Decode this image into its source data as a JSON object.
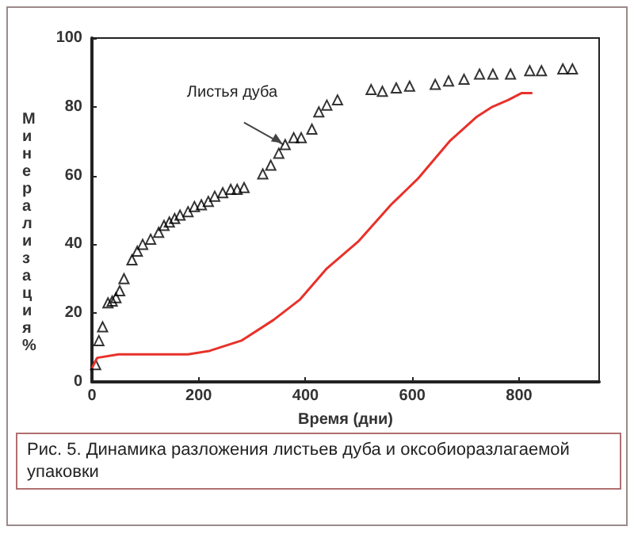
{
  "chart_data": {
    "type": "scatter",
    "xlabel": "Время (дни)",
    "ylabel": "Минерализация %",
    "xlim": [
      0,
      950
    ],
    "xticks": [
      0,
      200,
      400,
      600,
      800
    ],
    "ylim": [
      0,
      100
    ],
    "yticks": [
      0,
      20,
      40,
      60,
      80,
      100
    ],
    "grid": false,
    "series": [
      {
        "marker": "triangle",
        "color": "#000000",
        "x": [
          7,
          13,
          20,
          30,
          38,
          45,
          52,
          60,
          75,
          85,
          95,
          110,
          125,
          135,
          145,
          155,
          165,
          180,
          192,
          205,
          218,
          230,
          245,
          260,
          272,
          285,
          320,
          335,
          350,
          362,
          378,
          392,
          412,
          425,
          440,
          460,
          523,
          544,
          570,
          595,
          643,
          668,
          697,
          726,
          751,
          784,
          820,
          842,
          882,
          900
        ],
        "values": [
          5,
          12,
          16,
          23,
          23.5,
          24.5,
          26.5,
          30,
          35.5,
          38,
          40,
          41.5,
          43.5,
          45.5,
          46.5,
          47.5,
          48.5,
          49.5,
          51,
          51.5,
          52.5,
          54,
          55,
          56,
          56,
          56.5,
          60.5,
          63,
          66.5,
          69,
          71,
          71,
          73.5,
          78.5,
          80.5,
          82,
          85,
          84.5,
          85.5,
          86,
          86.5,
          87.5,
          88,
          89.5,
          89.5,
          89.5,
          90.5,
          90.5,
          91,
          91
        ]
      },
      {
        "type": "line",
        "marker": "none",
        "color": "#e8312a",
        "x": [
          0,
          10,
          50,
          180,
          220,
          280,
          340,
          390,
          440,
          500,
          560,
          610,
          670,
          720,
          750,
          780,
          805,
          825
        ],
        "values": [
          4,
          7,
          8,
          8,
          9,
          12,
          18,
          24,
          33,
          41,
          51.5,
          59,
          70,
          77,
          80,
          82,
          84,
          84
        ]
      }
    ],
    "annotations": [
      {
        "text": "Листья дуба",
        "x": 362,
        "y": 69
      },
      "Рис. 5. Динамика разложения листьев дуба и оксобиоразлагаемой упаковки"
    ]
  }
}
